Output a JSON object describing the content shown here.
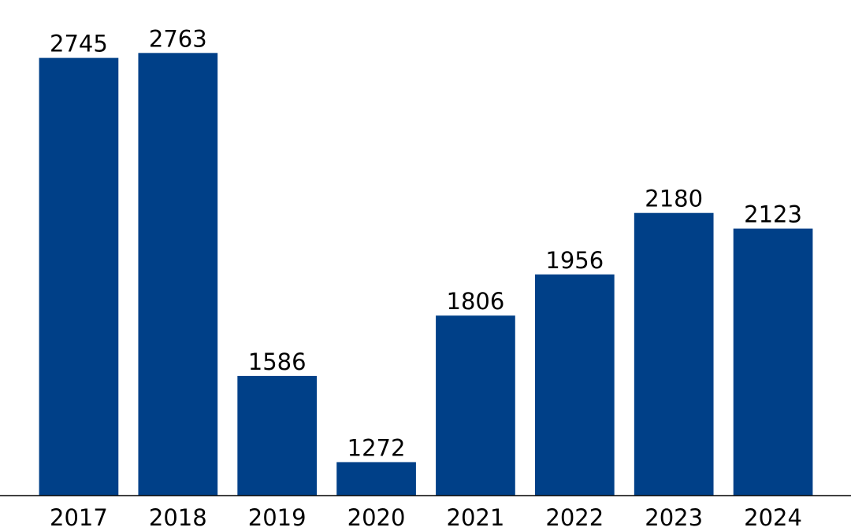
{
  "chart_data": {
    "type": "bar",
    "categories": [
      "2017",
      "2018",
      "2019",
      "2020",
      "2021",
      "2022",
      "2023",
      "2024"
    ],
    "values": [
      2745,
      2763,
      1586,
      1272,
      1806,
      1956,
      2180,
      2123
    ],
    "title": "",
    "xlabel": "",
    "ylabel": "",
    "ylim": [
      1150,
      2870
    ],
    "grid": false,
    "legend": "none",
    "bar_color": "#004088",
    "highlight_category": "2024",
    "highlight_label_color": "#ff0000",
    "label_color": "#000000"
  }
}
